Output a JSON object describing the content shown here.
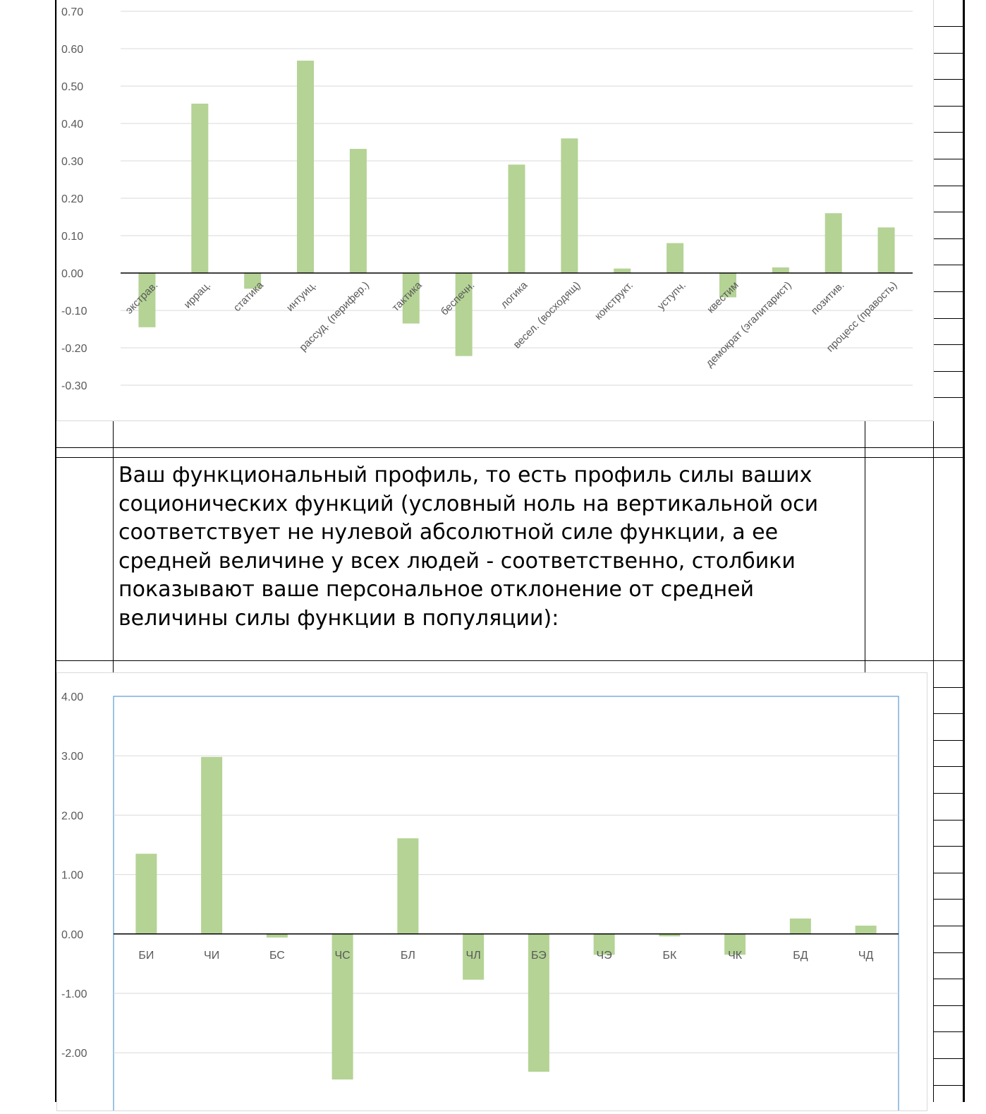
{
  "description": "Ваш функциональный профиль, то есть профиль силы ваших соционических функций (условный ноль на вертикальной оси соответствует не нулевой абсолютной силе функции, а ее средней величине у всех людей - соответственно, столбики показывают ваше персональное отклонение от средней величины силы функции в популяции):",
  "colors": {
    "bar": "#b4d395",
    "grid": "#d9d9d9",
    "axis": "#000000",
    "plot_border": "#5b9bd5",
    "tick": "#595959"
  },
  "chart_data": [
    {
      "type": "bar",
      "categories": [
        "экстрав.",
        "иррац.",
        "статика",
        "интуиц.",
        "рассуд. (перифер.)",
        "тактика",
        "беспечн.",
        "логика",
        "весел. (восходящ)",
        "конструкт.",
        "уступч.",
        "квестим",
        "демократ (эгалитарист)",
        "позитив.",
        "процесс (правость)"
      ],
      "values": [
        -0.145,
        0.453,
        -0.042,
        0.568,
        0.332,
        -0.135,
        -0.222,
        0.29,
        0.36,
        0.012,
        0.08,
        -0.065,
        0.015,
        0.16,
        0.122
      ],
      "yticks": [
        "0.70",
        "0.60",
        "0.50",
        "0.40",
        "0.30",
        "0.20",
        "0.10",
        "0.00",
        "-0.10",
        "-0.20",
        "-0.30"
      ],
      "ylim": [
        -0.3,
        0.7
      ],
      "grid": true,
      "legend": "none"
    },
    {
      "type": "bar",
      "categories": [
        "БИ",
        "ЧИ",
        "БС",
        "ЧС",
        "БЛ",
        "ЧЛ",
        "БЭ",
        "ЧЭ",
        "БК",
        "ЧК",
        "БД",
        "ЧД"
      ],
      "values": [
        1.35,
        2.98,
        -0.06,
        -2.45,
        1.61,
        -0.77,
        -2.32,
        -0.35,
        -0.04,
        -0.35,
        0.26,
        0.14
      ],
      "yticks": [
        "4.00",
        "3.00",
        "2.00",
        "1.00",
        "0.00",
        "-1.00",
        "-2.00"
      ],
      "ylim": [
        -3,
        4
      ],
      "grid": true,
      "legend": "none"
    }
  ]
}
